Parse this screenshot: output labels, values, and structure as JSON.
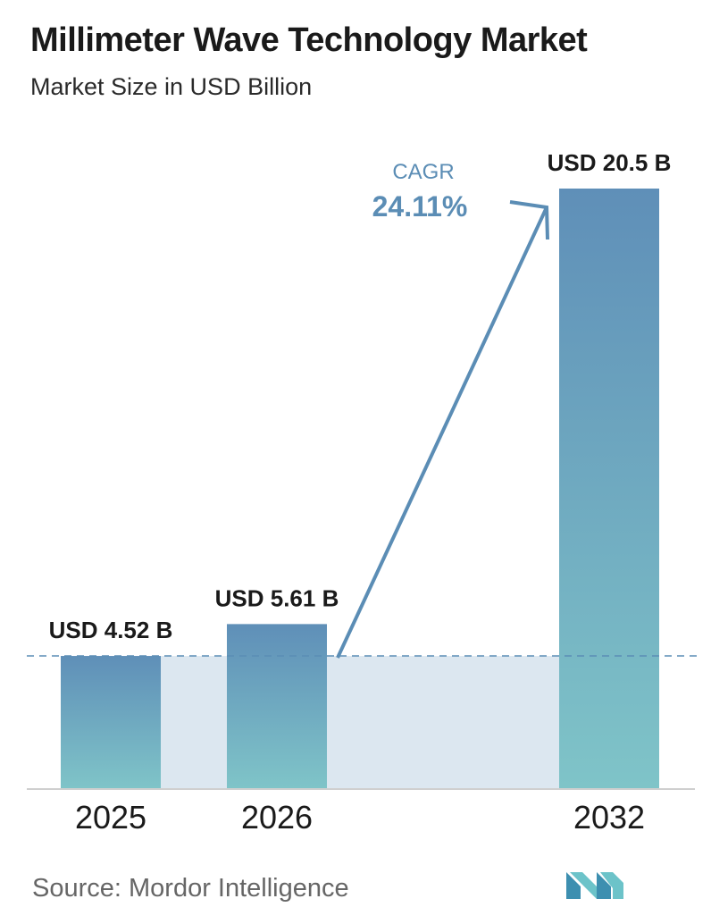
{
  "header": {
    "title": "Millimeter Wave Technology Market",
    "subtitle": "Market Size in USD Billion"
  },
  "chart_data": {
    "type": "bar",
    "title": "Millimeter Wave Technology Market",
    "subtitle": "Market Size in USD Billion",
    "categories": [
      "2025",
      "2026",
      "2032"
    ],
    "values": [
      4.52,
      5.61,
      20.5
    ],
    "data_labels": [
      "USD 4.52 B",
      "USD 5.61 B",
      "USD 20.5 B"
    ],
    "ylim": [
      0,
      20.5
    ],
    "grid": false,
    "annotation": {
      "cagr_label": "CAGR",
      "cagr_value": "24.11%"
    },
    "colors": {
      "bar_top": "#5f8fb8",
      "bar_bottom": "#7fc4c8",
      "band": "#dce7f0",
      "arrow": "#5b8db5",
      "dashed_line": "#5b8db5",
      "axis": "#cfcfcf"
    }
  },
  "footer": {
    "source": "Source:  Mordor Intelligence",
    "logo_icon": "mordor-intelligence-logo-icon"
  }
}
